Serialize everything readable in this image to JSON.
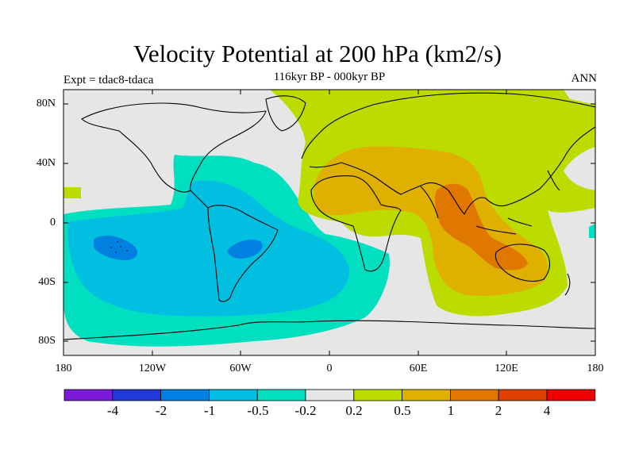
{
  "title": "Velocity Potential at 200 hPa (km2/s)",
  "subtitle": "116kyr BP - 000kyr BP",
  "experiment_label": "Expt = tdac8-tdaca",
  "season_label": "ANN",
  "axes": {
    "y_ticks": [
      "80N",
      "40N",
      "0",
      "40S",
      "80S"
    ],
    "x_ticks": [
      "180",
      "120W",
      "60W",
      "0",
      "60E",
      "120E",
      "180"
    ]
  },
  "colorbar": {
    "labels": [
      "-4",
      "-2",
      "-1",
      "-0.5",
      "-0.2",
      "0.2",
      "0.5",
      "1",
      "2",
      "4"
    ],
    "colors": [
      "#7b1ad8",
      "#2139d6",
      "#0080e0",
      "#00bfe0",
      "#00e0c0",
      "#e6e6e6",
      "#bcdc00",
      "#e0b000",
      "#e07800",
      "#e04000",
      "#f00000"
    ]
  },
  "colors": {
    "neutral": "#e6e6e6",
    "neg_weak": "#00e0c0",
    "neg_mid": "#00bfe0",
    "neg_strong": "#0080e0",
    "pos_weak": "#bcdc00",
    "pos_mid": "#e0b000",
    "pos_strong": "#e07800"
  }
}
